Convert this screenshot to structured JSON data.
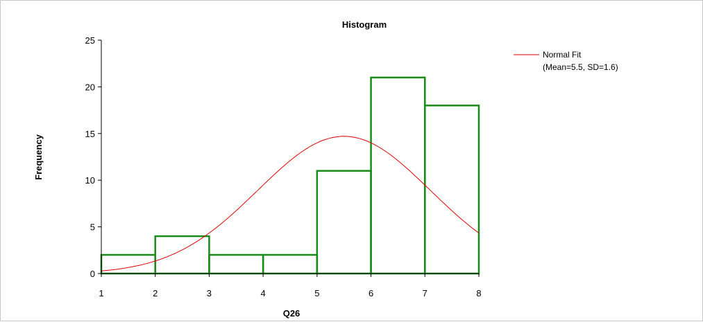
{
  "chart_data": {
    "type": "bar",
    "title": "Histogram",
    "xlabel": "Q26",
    "ylabel": "Frequency",
    "xlim": [
      1,
      8
    ],
    "ylim": [
      0,
      25
    ],
    "x_ticks": [
      1,
      2,
      3,
      4,
      5,
      6,
      7,
      8
    ],
    "y_ticks": [
      0,
      5,
      10,
      15,
      20,
      25
    ],
    "bins": [
      {
        "start": 1,
        "end": 2,
        "value": 2
      },
      {
        "start": 2,
        "end": 3,
        "value": 4
      },
      {
        "start": 3,
        "end": 4,
        "value": 2
      },
      {
        "start": 4,
        "end": 5,
        "value": 2
      },
      {
        "start": 5,
        "end": 6,
        "value": 11
      },
      {
        "start": 6,
        "end": 7,
        "value": 21
      },
      {
        "start": 7,
        "end": 8,
        "value": 18
      }
    ],
    "fit": {
      "name": "Normal Fit",
      "detail": "(Mean=5.5, SD=1.6)",
      "mean": 5.5,
      "sd": 1.6,
      "peak": 14.7
    },
    "legend_position": "top-right",
    "grid": false,
    "colors": {
      "bars": "#1a8a1a",
      "fit": "#e00000",
      "axis": "#000000"
    }
  }
}
